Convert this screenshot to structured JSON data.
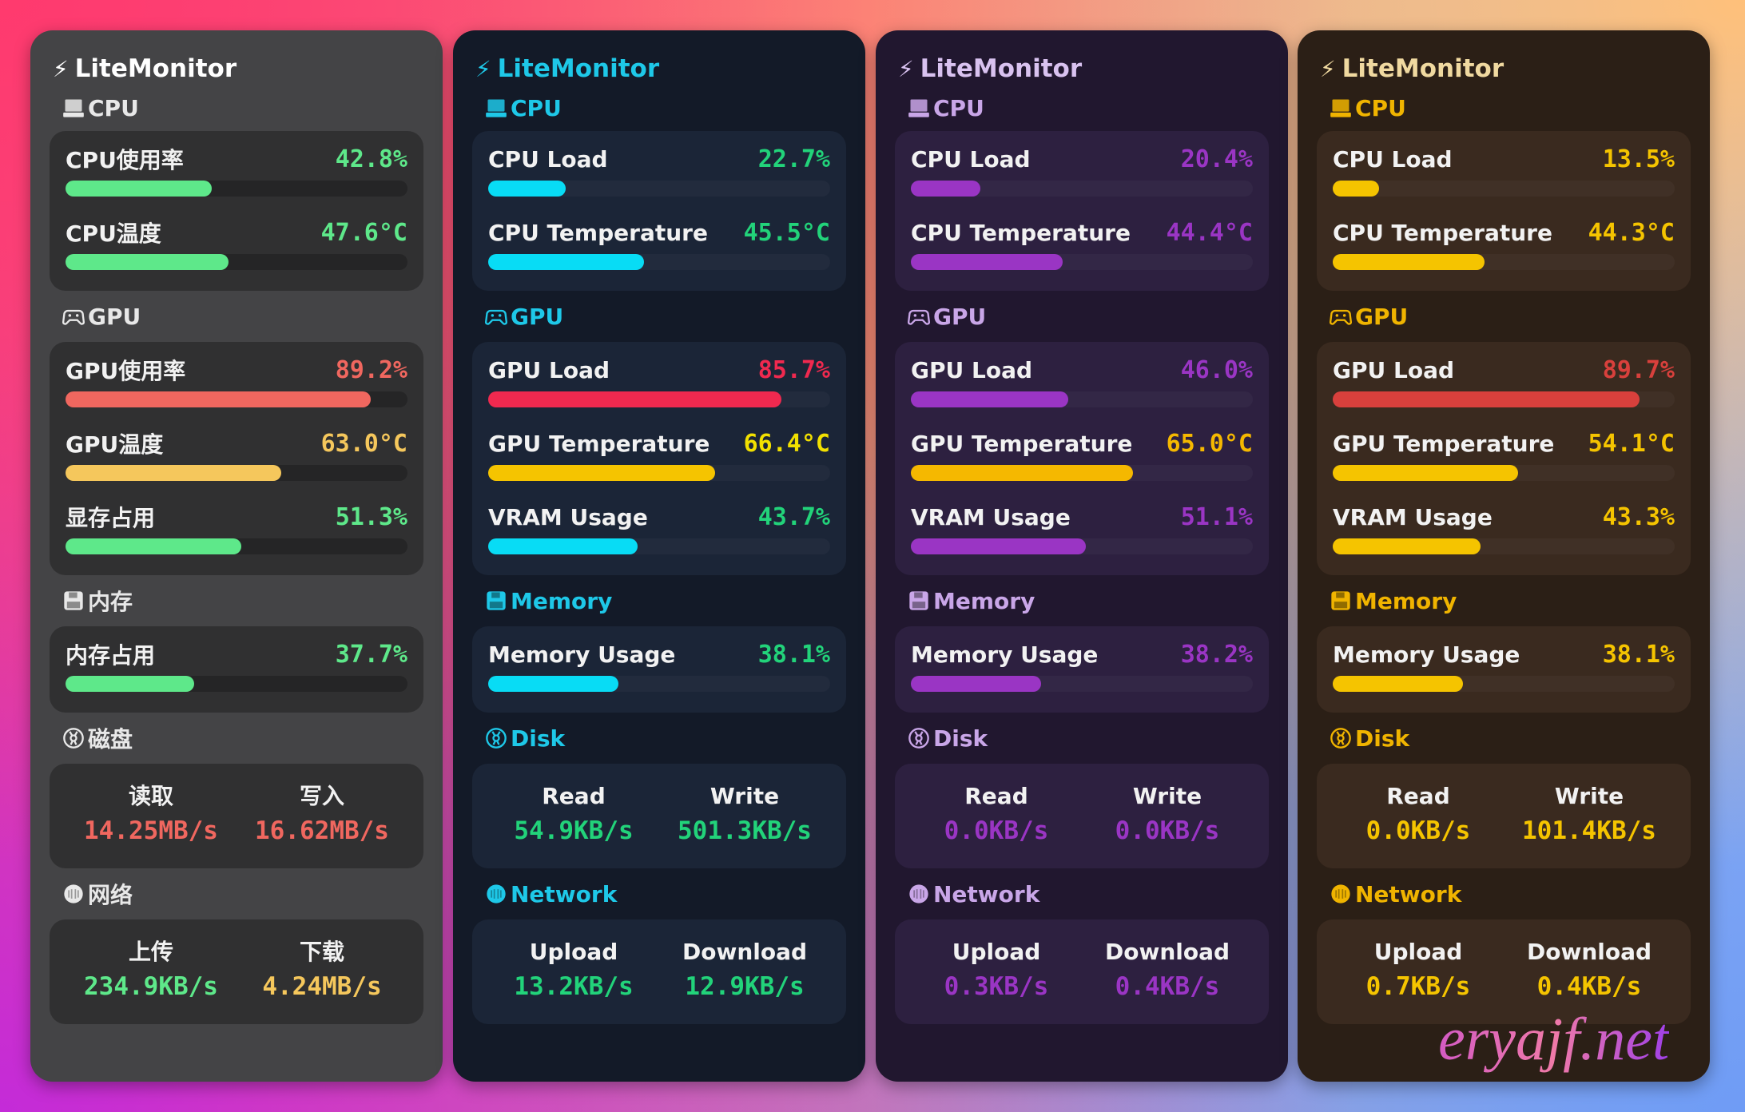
{
  "panels": [
    {
      "theme": {
        "bg": "#444446",
        "card": "#303031",
        "text_header": "#e8e8e8",
        "title": "#ffffff",
        "track": "#252526"
      },
      "title": "LiteMonitor",
      "sections": [
        {
          "name": "CPU",
          "icon": "cpu-icon",
          "rows": [
            {
              "label": "CPU使用率",
              "value": "42.8%",
              "fraction": 0.428,
              "value_color": "#5ee88a",
              "bar_color": "#5ee88a"
            },
            {
              "label": "CPU温度",
              "value": "47.6°C",
              "fraction": 0.476,
              "value_color": "#5ee88a",
              "bar_color": "#5ee88a"
            }
          ]
        },
        {
          "name": "GPU",
          "icon": "gamepad-icon",
          "rows": [
            {
              "label": "GPU使用率",
              "value": "89.2%",
              "fraction": 0.892,
              "value_color": "#f0675f",
              "bar_color": "#f0675f"
            },
            {
              "label": "GPU温度",
              "value": "63.0°C",
              "fraction": 0.63,
              "value_color": "#f5c75c",
              "bar_color": "#f5c75c"
            },
            {
              "label": "显存占用",
              "value": "51.3%",
              "fraction": 0.513,
              "value_color": "#5ee88a",
              "bar_color": "#5ee88a"
            }
          ]
        },
        {
          "name": "内存",
          "icon": "floppy-icon",
          "rows": [
            {
              "label": "内存占用",
              "value": "37.7%",
              "fraction": 0.377,
              "value_color": "#5ee88a",
              "bar_color": "#5ee88a"
            }
          ]
        },
        {
          "name": "磁盘",
          "icon": "disk-icon",
          "io": [
            {
              "label": "读取",
              "value": "14.25MB/s",
              "color": "#f0675f"
            },
            {
              "label": "写入",
              "value": "16.62MB/s",
              "color": "#f0675f"
            }
          ]
        },
        {
          "name": "网络",
          "icon": "network-icon",
          "io": [
            {
              "label": "上传",
              "value": "234.9KB/s",
              "color": "#5ee88a"
            },
            {
              "label": "下载",
              "value": "4.24MB/s",
              "color": "#f5c75c"
            }
          ]
        }
      ]
    },
    {
      "theme": {
        "bg": "#131a28",
        "card": "#1b2537",
        "text_header": "#1ec8e8",
        "title": "#1ec8e8",
        "track": "#1b2537"
      },
      "title": "LiteMonitor",
      "sections": [
        {
          "name": "CPU",
          "icon": "cpu-icon",
          "rows": [
            {
              "label": "CPU Load",
              "value": "22.7%",
              "fraction": 0.227,
              "value_color": "#22d37a",
              "bar_color": "#08dcf5"
            },
            {
              "label": "CPU Temperature",
              "value": "45.5°C",
              "fraction": 0.455,
              "value_color": "#22d37a",
              "bar_color": "#08dcf5"
            }
          ]
        },
        {
          "name": "GPU",
          "icon": "gamepad-icon",
          "rows": [
            {
              "label": "GPU Load",
              "value": "85.7%",
              "fraction": 0.857,
              "value_color": "#f0294f",
              "bar_color": "#f0294f"
            },
            {
              "label": "GPU Temperature",
              "value": "66.4°C",
              "fraction": 0.664,
              "value_color": "#f2e000",
              "bar_color": "#f5c400"
            },
            {
              "label": "VRAM Usage",
              "value": "43.7%",
              "fraction": 0.437,
              "value_color": "#22d37a",
              "bar_color": "#08dcf5"
            }
          ]
        },
        {
          "name": "Memory",
          "icon": "floppy-icon",
          "rows": [
            {
              "label": "Memory Usage",
              "value": "38.1%",
              "fraction": 0.381,
              "value_color": "#22d37a",
              "bar_color": "#08dcf5"
            }
          ]
        },
        {
          "name": "Disk",
          "icon": "disk-icon",
          "io": [
            {
              "label": "Read",
              "value": "54.9KB/s",
              "color": "#22d37a"
            },
            {
              "label": "Write",
              "value": "501.3KB/s",
              "color": "#22d37a"
            }
          ]
        },
        {
          "name": "Network",
          "icon": "network-icon",
          "io": [
            {
              "label": "Upload",
              "value": "13.2KB/s",
              "color": "#22d37a"
            },
            {
              "label": "Download",
              "value": "12.9KB/s",
              "color": "#22d37a"
            }
          ]
        }
      ]
    },
    {
      "theme": {
        "bg": "#21172f",
        "card": "#2d2040",
        "text_header": "#c9a6e8",
        "title": "#d9c2f0",
        "track": "#2d2040"
      },
      "title": "LiteMonitor",
      "sections": [
        {
          "name": "CPU",
          "icon": "cpu-icon",
          "rows": [
            {
              "label": "CPU Load",
              "value": "20.4%",
              "fraction": 0.204,
              "value_color": "#9a35c4",
              "bar_color": "#9a35c4"
            },
            {
              "label": "CPU Temperature",
              "value": "44.4°C",
              "fraction": 0.444,
              "value_color": "#9a35c4",
              "bar_color": "#9a35c4"
            }
          ]
        },
        {
          "name": "GPU",
          "icon": "gamepad-icon",
          "rows": [
            {
              "label": "GPU Load",
              "value": "46.0%",
              "fraction": 0.46,
              "value_color": "#9a35c4",
              "bar_color": "#9a35c4"
            },
            {
              "label": "GPU Temperature",
              "value": "65.0°C",
              "fraction": 0.65,
              "value_color": "#f5b800",
              "bar_color": "#f5b800"
            },
            {
              "label": "VRAM Usage",
              "value": "51.1%",
              "fraction": 0.511,
              "value_color": "#9a35c4",
              "bar_color": "#9a35c4"
            }
          ]
        },
        {
          "name": "Memory",
          "icon": "floppy-icon",
          "rows": [
            {
              "label": "Memory Usage",
              "value": "38.2%",
              "fraction": 0.382,
              "value_color": "#9a35c4",
              "bar_color": "#9a35c4"
            }
          ]
        },
        {
          "name": "Disk",
          "icon": "disk-icon",
          "io": [
            {
              "label": "Read",
              "value": "0.0KB/s",
              "color": "#9a35c4"
            },
            {
              "label": "Write",
              "value": "0.0KB/s",
              "color": "#9a35c4"
            }
          ]
        },
        {
          "name": "Network",
          "icon": "network-icon",
          "io": [
            {
              "label": "Upload",
              "value": "0.3KB/s",
              "color": "#9a35c4"
            },
            {
              "label": "Download",
              "value": "0.4KB/s",
              "color": "#9a35c4"
            }
          ]
        }
      ]
    },
    {
      "theme": {
        "bg": "#2b1f16",
        "card": "#3a2a1f",
        "text_header": "#f0b400",
        "title": "#f0d9a0",
        "track": "#3a2a1f"
      },
      "title": "LiteMonitor",
      "sections": [
        {
          "name": "CPU",
          "icon": "cpu-icon",
          "rows": [
            {
              "label": "CPU Load",
              "value": "13.5%",
              "fraction": 0.135,
              "value_color": "#f5c400",
              "bar_color": "#f5c400"
            },
            {
              "label": "CPU Temperature",
              "value": "44.3°C",
              "fraction": 0.443,
              "value_color": "#f5c400",
              "bar_color": "#f5c400"
            }
          ]
        },
        {
          "name": "GPU",
          "icon": "gamepad-icon",
          "rows": [
            {
              "label": "GPU Load",
              "value": "89.7%",
              "fraction": 0.897,
              "value_color": "#d8403c",
              "bar_color": "#d8403c"
            },
            {
              "label": "GPU Temperature",
              "value": "54.1°C",
              "fraction": 0.541,
              "value_color": "#f5c400",
              "bar_color": "#f5c400"
            },
            {
              "label": "VRAM Usage",
              "value": "43.3%",
              "fraction": 0.433,
              "value_color": "#f5c400",
              "bar_color": "#f5c400"
            }
          ]
        },
        {
          "name": "Memory",
          "icon": "floppy-icon",
          "rows": [
            {
              "label": "Memory Usage",
              "value": "38.1%",
              "fraction": 0.381,
              "value_color": "#f5c400",
              "bar_color": "#f5c400"
            }
          ]
        },
        {
          "name": "Disk",
          "icon": "disk-icon",
          "io": [
            {
              "label": "Read",
              "value": "0.0KB/s",
              "color": "#f5c400"
            },
            {
              "label": "Write",
              "value": "101.4KB/s",
              "color": "#f5c400"
            }
          ]
        },
        {
          "name": "Network",
          "icon": "network-icon",
          "io": [
            {
              "label": "Upload",
              "value": "0.7KB/s",
              "color": "#f5c400"
            },
            {
              "label": "Download",
              "value": "0.4KB/s",
              "color": "#f5c400"
            }
          ]
        }
      ]
    }
  ],
  "watermark": "eryajf.net"
}
